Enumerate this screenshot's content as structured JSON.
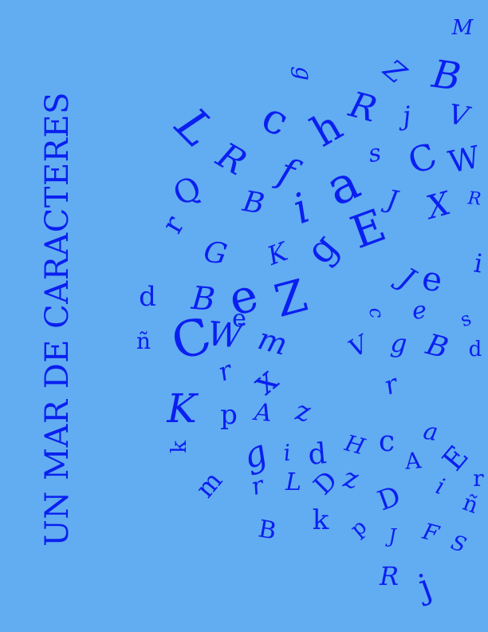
{
  "cover": {
    "title": "UN MAR DE CARACTERES",
    "colors": {
      "background": "#62acf2",
      "text": "#0a1ff0"
    }
  },
  "letters": [
    "M",
    "B",
    "V",
    "W",
    "R",
    "X",
    "Z",
    "g",
    "j",
    "C",
    "c",
    "L",
    "h",
    "R",
    "s",
    "f",
    "a",
    "J",
    "E",
    "R",
    "Q",
    "B",
    "i",
    "r",
    "G",
    "K",
    "g",
    "e",
    "i",
    "J",
    "e",
    "d",
    "B",
    "e",
    "Z",
    "s",
    "c",
    "ñ",
    "C",
    "W",
    "m",
    "g",
    "B",
    "V",
    "d",
    "r",
    "x",
    "r",
    "K",
    "p",
    "A",
    "z",
    "k",
    "g",
    "i",
    "d",
    "H",
    "c",
    "a",
    "A",
    "E",
    "r",
    "i",
    "m",
    "r",
    "L",
    "D",
    "z",
    "D",
    "ñ",
    "B",
    "k",
    "p",
    "J",
    "F",
    "S",
    "R",
    "j",
    "e"
  ]
}
